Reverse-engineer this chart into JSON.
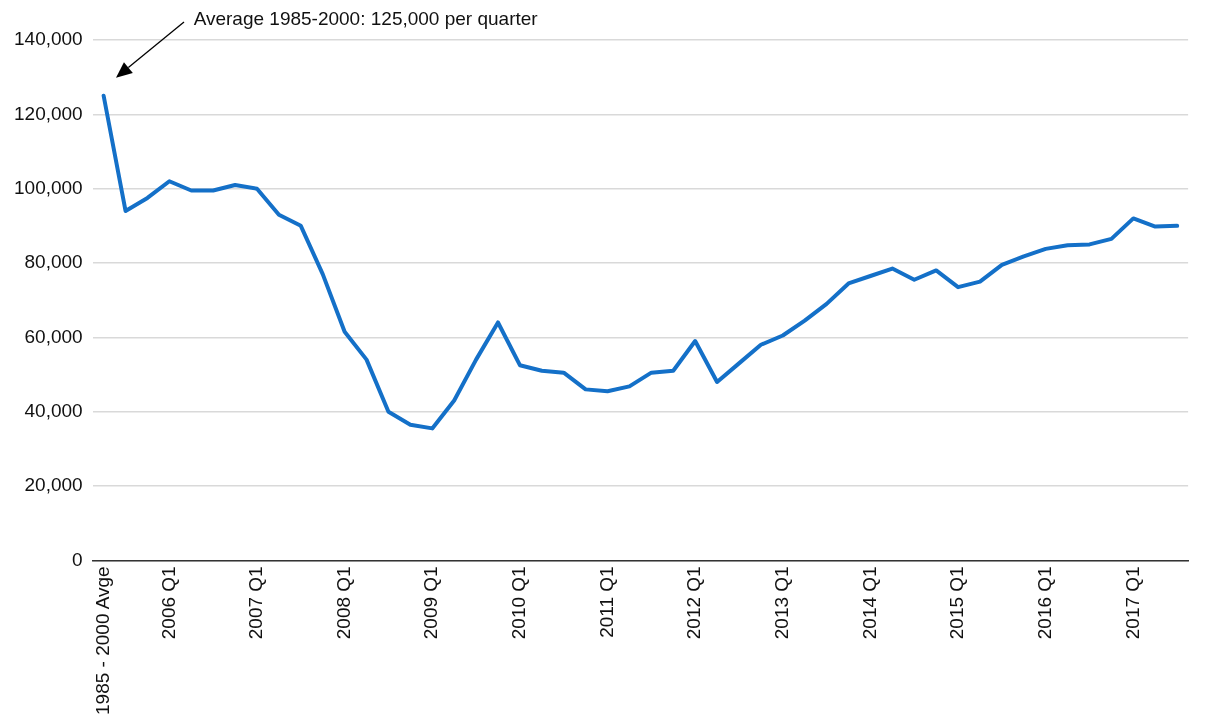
{
  "chart_data": {
    "type": "line",
    "categories": [
      "1985 - 2000 Avge",
      null,
      null,
      "2006 Q1",
      null,
      null,
      null,
      "2007 Q1",
      null,
      null,
      null,
      "2008 Q1",
      null,
      null,
      null,
      "2009 Q1",
      null,
      null,
      null,
      "2010 Q1",
      null,
      null,
      null,
      "2011 Q1",
      null,
      null,
      null,
      "2012 Q1",
      null,
      null,
      null,
      "2013 Q1",
      null,
      null,
      null,
      "2014 Q1",
      null,
      null,
      null,
      "2015 Q1",
      null,
      null,
      null,
      "2016 Q1",
      null,
      null,
      null,
      "2017 Q1",
      null,
      null
    ],
    "series": [
      {
        "color": "#1470c8",
        "values": [
          125000,
          94000,
          97500,
          102000,
          99500,
          99500,
          101000,
          100000,
          93000,
          90000,
          77000,
          61500,
          54000,
          40000,
          36500,
          35500,
          43000,
          54000,
          64000,
          52500,
          51000,
          50500,
          46000,
          45500,
          46800,
          50500,
          51000,
          59000,
          48000,
          53000,
          58000,
          60500,
          64500,
          69000,
          74500,
          76500,
          78500,
          75500,
          78000,
          73500,
          75000,
          79500,
          81800,
          83800,
          84800,
          85000,
          86500,
          92000,
          89800,
          90000
        ]
      }
    ],
    "ylim": [
      0,
      140000
    ],
    "yticks": [
      0,
      {
        "value": 20000,
        "label": "20,000"
      },
      {
        "value": 40000,
        "label": "40,000"
      },
      {
        "value": 60000,
        "label": "60,000"
      },
      {
        "value": 80000,
        "label": "80,000"
      },
      {
        "value": 100000,
        "label": "100,000"
      },
      {
        "value": 120000,
        "label": "120,000"
      },
      {
        "value": 140000,
        "label": "140,000"
      }
    ],
    "grid": "y",
    "legend": false,
    "marker": "none",
    "line_style": "solid",
    "annotations": [
      "Average 1985-2000: 125,000 per quarter"
    ]
  }
}
